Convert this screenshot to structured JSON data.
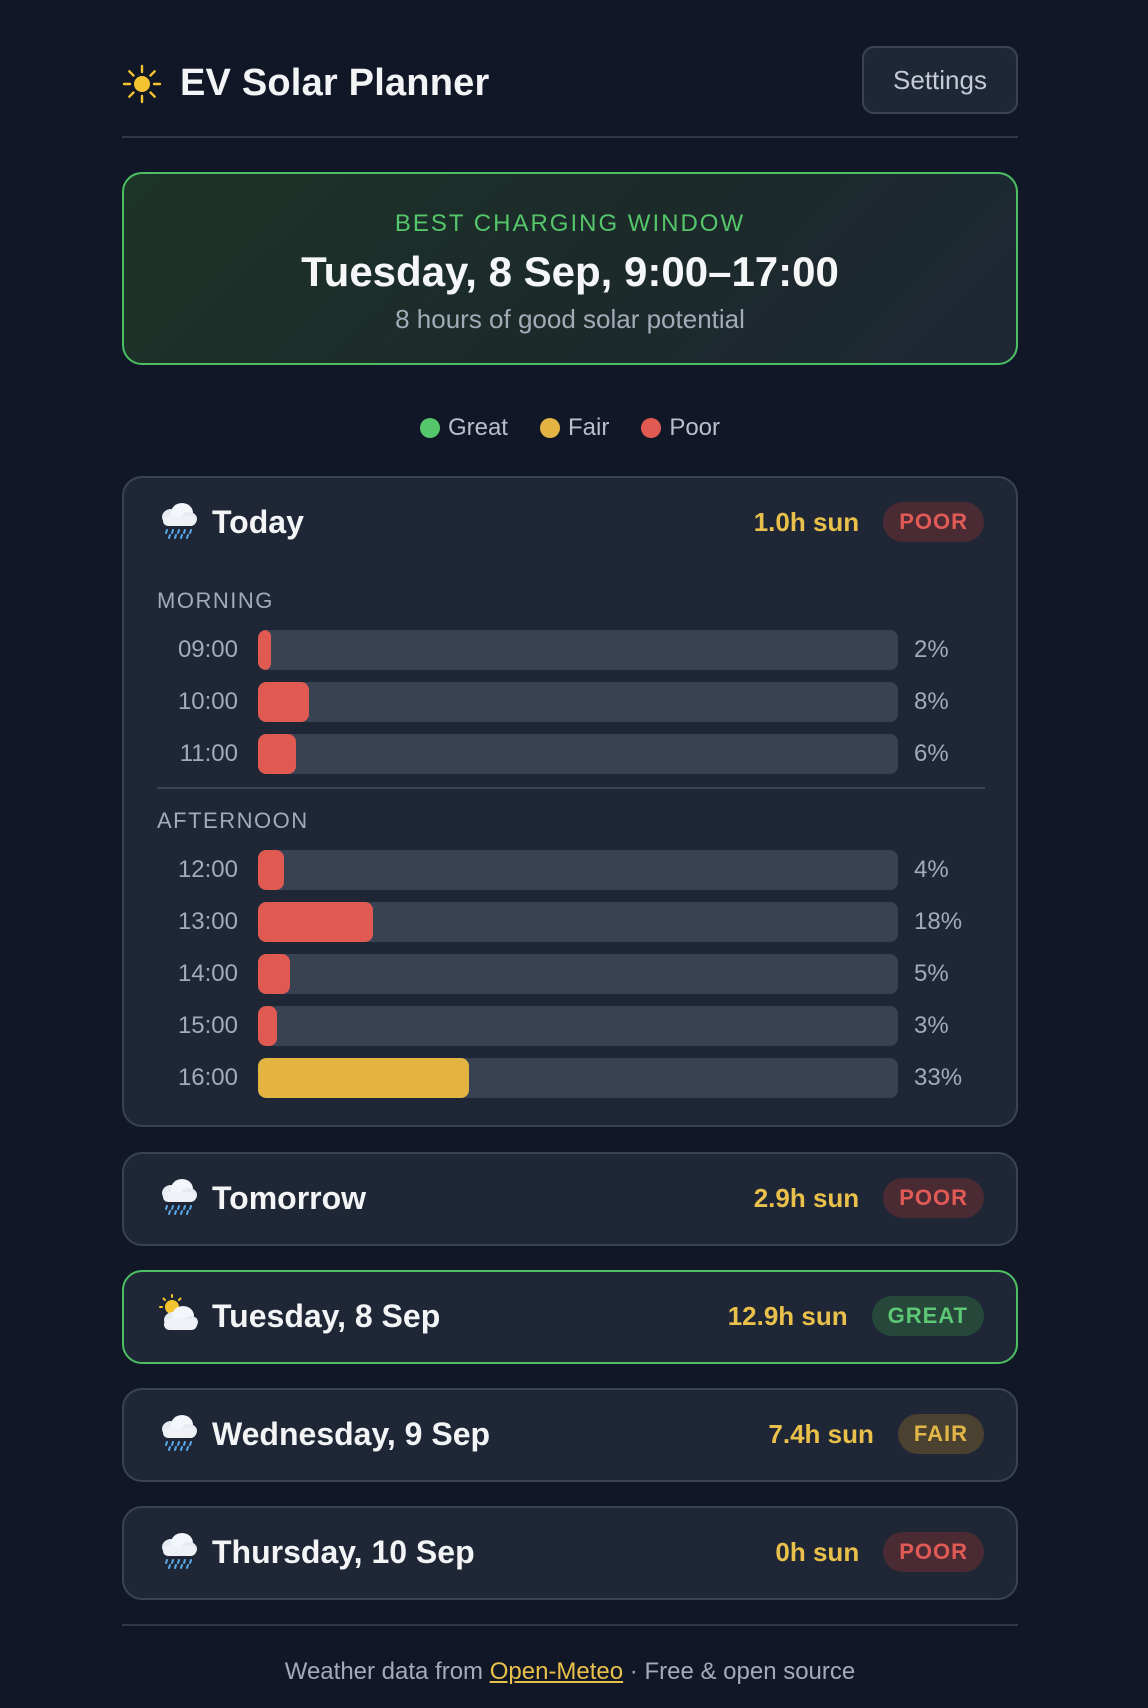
{
  "header": {
    "app_icon": "sun-icon",
    "title": "EV Solar Planner",
    "settings_label": "Settings"
  },
  "best_window": {
    "label": "BEST CHARGING WINDOW",
    "title": "Tuesday, 8 Sep, 9:00–17:00",
    "subtitle": "8 hours of good solar potential"
  },
  "legend": [
    {
      "label": "Great",
      "color": "#55c66a"
    },
    {
      "label": "Fair",
      "color": "#e3b442"
    },
    {
      "label": "Poor",
      "color": "#e05a52"
    }
  ],
  "days": [
    {
      "name": "Today",
      "icon": "rain-cloud-icon",
      "sun": "1.0h sun",
      "rating": "POOR",
      "expanded": true,
      "sections": [
        {
          "label": "MORNING",
          "hours": [
            {
              "time": "09:00",
              "pct": 2,
              "pct_label": "2%",
              "level": "poor"
            },
            {
              "time": "10:00",
              "pct": 8,
              "pct_label": "8%",
              "level": "poor"
            },
            {
              "time": "11:00",
              "pct": 6,
              "pct_label": "6%",
              "level": "poor"
            }
          ]
        },
        {
          "label": "AFTERNOON",
          "hours": [
            {
              "time": "12:00",
              "pct": 4,
              "pct_label": "4%",
              "level": "poor"
            },
            {
              "time": "13:00",
              "pct": 18,
              "pct_label": "18%",
              "level": "poor"
            },
            {
              "time": "14:00",
              "pct": 5,
              "pct_label": "5%",
              "level": "poor"
            },
            {
              "time": "15:00",
              "pct": 3,
              "pct_label": "3%",
              "level": "poor"
            },
            {
              "time": "16:00",
              "pct": 33,
              "pct_label": "33%",
              "level": "fair"
            }
          ]
        }
      ]
    },
    {
      "name": "Tomorrow",
      "icon": "rain-cloud-icon",
      "sun": "2.9h sun",
      "rating": "POOR"
    },
    {
      "name": "Tuesday, 8 Sep",
      "icon": "sun-behind-cloud-icon",
      "sun": "12.9h sun",
      "rating": "GREAT",
      "highlight": true
    },
    {
      "name": "Wednesday, 9 Sep",
      "icon": "rain-cloud-icon",
      "sun": "7.4h sun",
      "rating": "FAIR"
    },
    {
      "name": "Thursday, 10 Sep",
      "icon": "rain-cloud-icon",
      "sun": "0h sun",
      "rating": "POOR"
    }
  ],
  "footer": {
    "prefix": "Weather data from ",
    "link": "Open-Meteo",
    "suffix": " · Free & open source"
  }
}
